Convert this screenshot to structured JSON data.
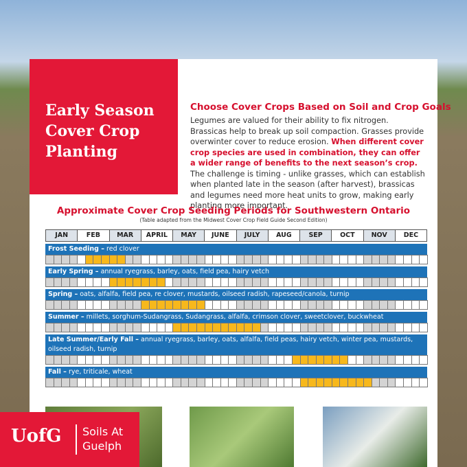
{
  "header": {
    "title": "Early Season Cover Crop Planting"
  },
  "intro": {
    "heading": "Choose Cover Crops Based on Soil and Crop Goals",
    "paragraph": [
      "Legumes are valued for their ability to fix nitrogen. Brassicas help to break up soil compaction. Grasses provide overwinter cover to reduce erosion. ",
      "When different cover crop species are used in combination, they can offer a wider range of benefits to the next season’s crop.",
      " The challenge is timing - unlike grasses, which can establish when planted late in the season (after harvest), brassicas and legumes need more heat units to grow, making early planting more important."
    ]
  },
  "table": {
    "title": "Approximate Cover Crop Seeding Periods for Southwestern Ontario",
    "subtitle": "(Table adapted from the Midwest Cover Crop Field Guide Second Edition)",
    "months": [
      "JAN",
      "FEB",
      "MAR",
      "APRIL",
      "MAY",
      "JUNE",
      "JULY",
      "AUG",
      "SEP",
      "OCT",
      "NOV",
      "DEC"
    ],
    "rows": [
      {
        "name": "Frost Seeding –",
        "species": "red clover",
        "weeks": [
          5,
          9
        ]
      },
      {
        "name": "Early Spring –",
        "species": "annual ryegrass, barley, oats, field pea, hairy vetch",
        "weeks": [
          8,
          14
        ]
      },
      {
        "name": "Spring –",
        "species": "oats, alfalfa, field pea, re clover, mustards, oilseed radish, rapeseed/canola, turnip",
        "weeks": [
          12,
          19
        ]
      },
      {
        "name": "Summer –",
        "species": "millets, sorghum-Sudangrass, Sudangrass, alfalfa, crimson clover, sweetclover, buckwheat",
        "weeks": [
          16,
          26
        ]
      },
      {
        "name": "Late Summer/Early Fall –",
        "species": "annual ryegrass, barley, oats, alfalfa, field peas, hairy vetch, winter pea, mustards, oilseed radish, turnip",
        "weeks": [
          31,
          37
        ]
      },
      {
        "name": "Fall –",
        "species": "rye, triticale, wheat",
        "weeks": [
          32,
          40
        ]
      }
    ]
  },
  "logo": {
    "mark": "UofG",
    "text": "Soils At Guelph"
  }
}
